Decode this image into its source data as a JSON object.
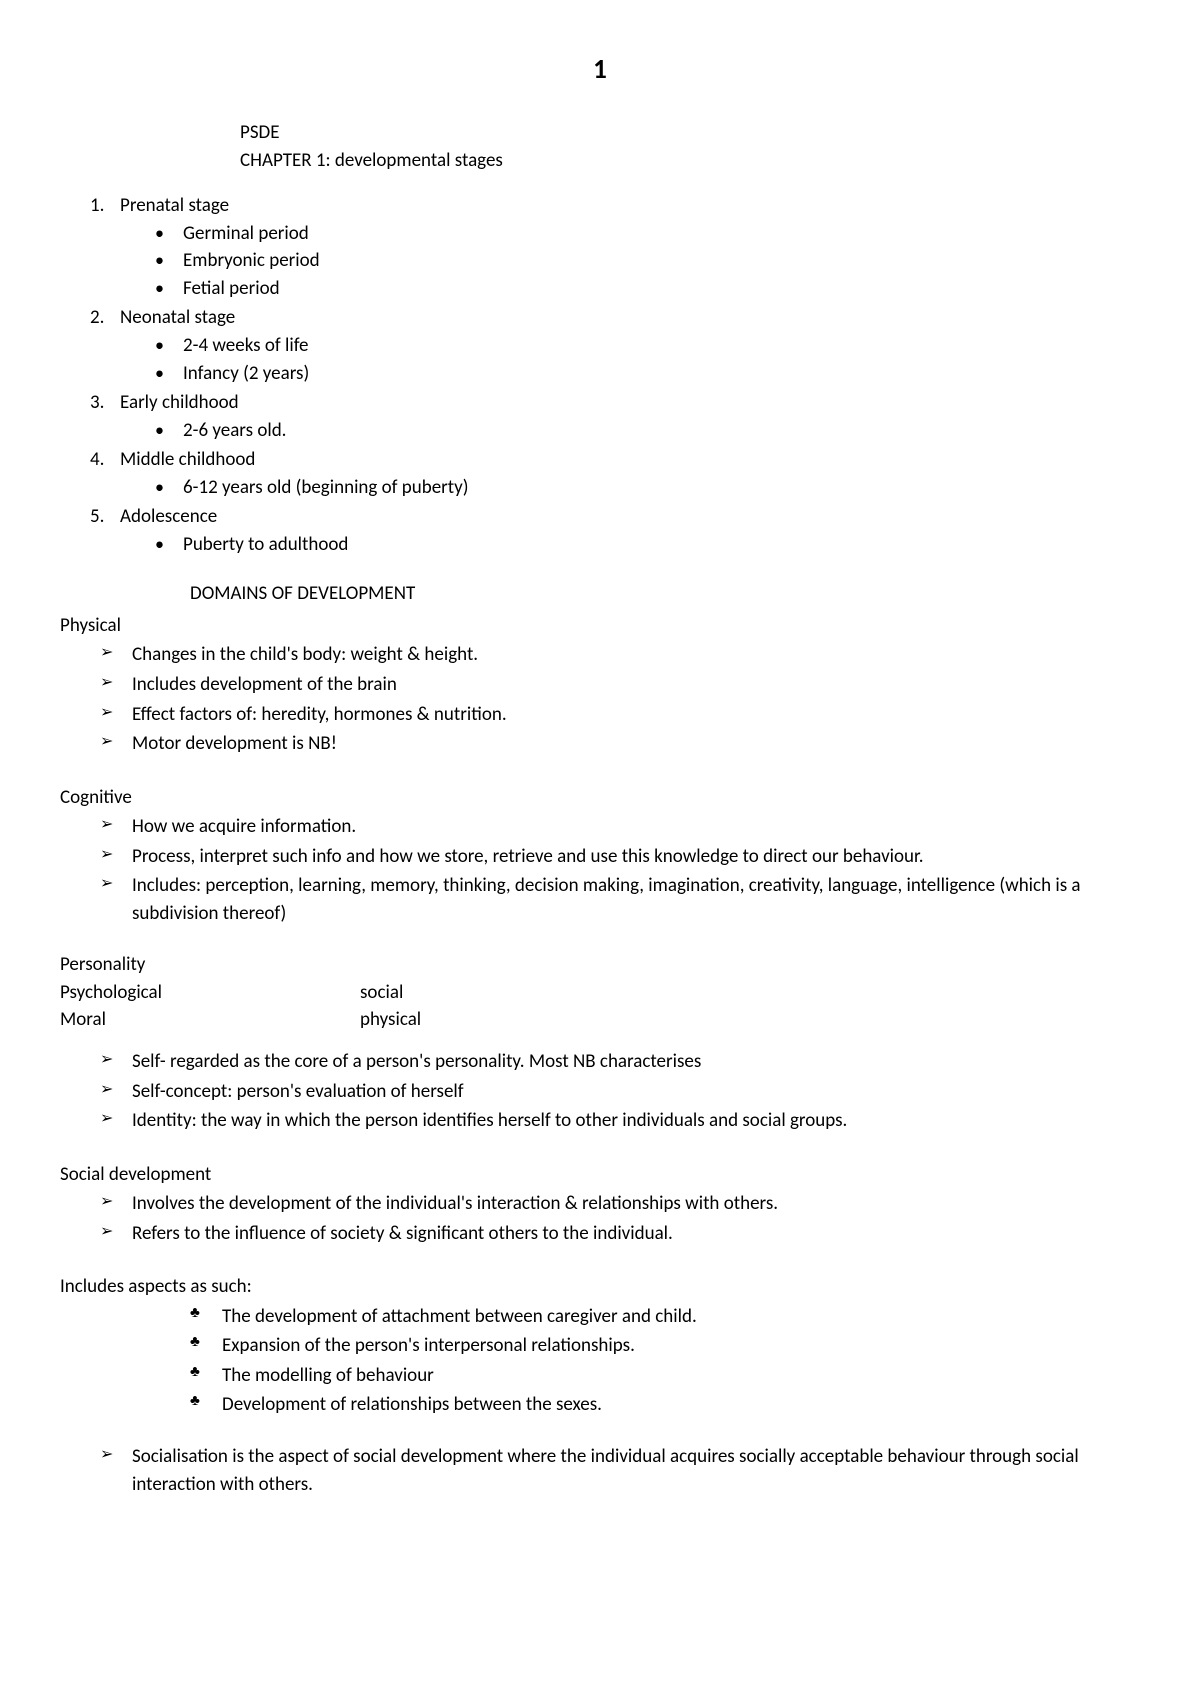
{
  "page_number": "1",
  "header": {
    "course": "PSDE",
    "chapter": "CHAPTER 1: developmental stages"
  },
  "stages": [
    {
      "num": "1.",
      "title": "Prenatal stage",
      "items": [
        "Germinal period",
        "Embryonic period",
        "Fetial period"
      ]
    },
    {
      "num": "2.",
      "title": "Neonatal stage",
      "items": [
        "2-4 weeks of life",
        "Infancy (2 years)"
      ]
    },
    {
      "num": "3.",
      "title": "Early childhood",
      "items": [
        "2-6 years old."
      ]
    },
    {
      "num": "4.",
      "title": "Middle childhood",
      "items": [
        "6-12 years old (beginning of puberty)"
      ]
    },
    {
      "num": "5.",
      "title": "Adolescence",
      "items": [
        "Puberty to adulthood"
      ]
    }
  ],
  "domains_heading": "DOMAINS OF DEVELOPMENT",
  "physical": {
    "label": "Physical",
    "items": [
      "Changes in the child's body: weight & height.",
      "Includes development of the brain",
      "Effect factors of: heredity, hormones & nutrition.",
      "Motor development is NB!"
    ]
  },
  "cognitive": {
    "label": "Cognitive",
    "items": [
      "How we acquire information.",
      "Process, interpret such info and how we store, retrieve and use this knowledge to direct our behaviour.",
      "Includes: perception, learning, memory, thinking, decision making, imagination, creativity, language, intelligence (which is a subdivision thereof)"
    ]
  },
  "personality": {
    "row1": {
      "left": "Personality",
      "right": ""
    },
    "row2": {
      "left": "Psychological",
      "right": "social"
    },
    "row3": {
      "left": "Moral",
      "right": "physical"
    },
    "items": [
      "Self- regarded as the core of a person's personality. Most NB characterises",
      "Self-concept: person's evaluation of herself",
      "Identity: the way in which the person identifies herself to other individuals and social groups."
    ]
  },
  "social": {
    "label": "Social development",
    "items": [
      "Involves the development of the individual's interaction & relationships with others.",
      "Refers to the influence of society & significant others to the individual."
    ]
  },
  "includes": {
    "label": "Includes aspects as such:",
    "items": [
      "The development of attachment between caregiver and child.",
      "Expansion of the person's interpersonal relationships.",
      "The modelling of behaviour",
      "Development of relationships between the sexes."
    ]
  },
  "socialisation": {
    "items": [
      "Socialisation is the aspect of social development where the individual acquires socially acceptable behaviour through social interaction with others."
    ]
  }
}
